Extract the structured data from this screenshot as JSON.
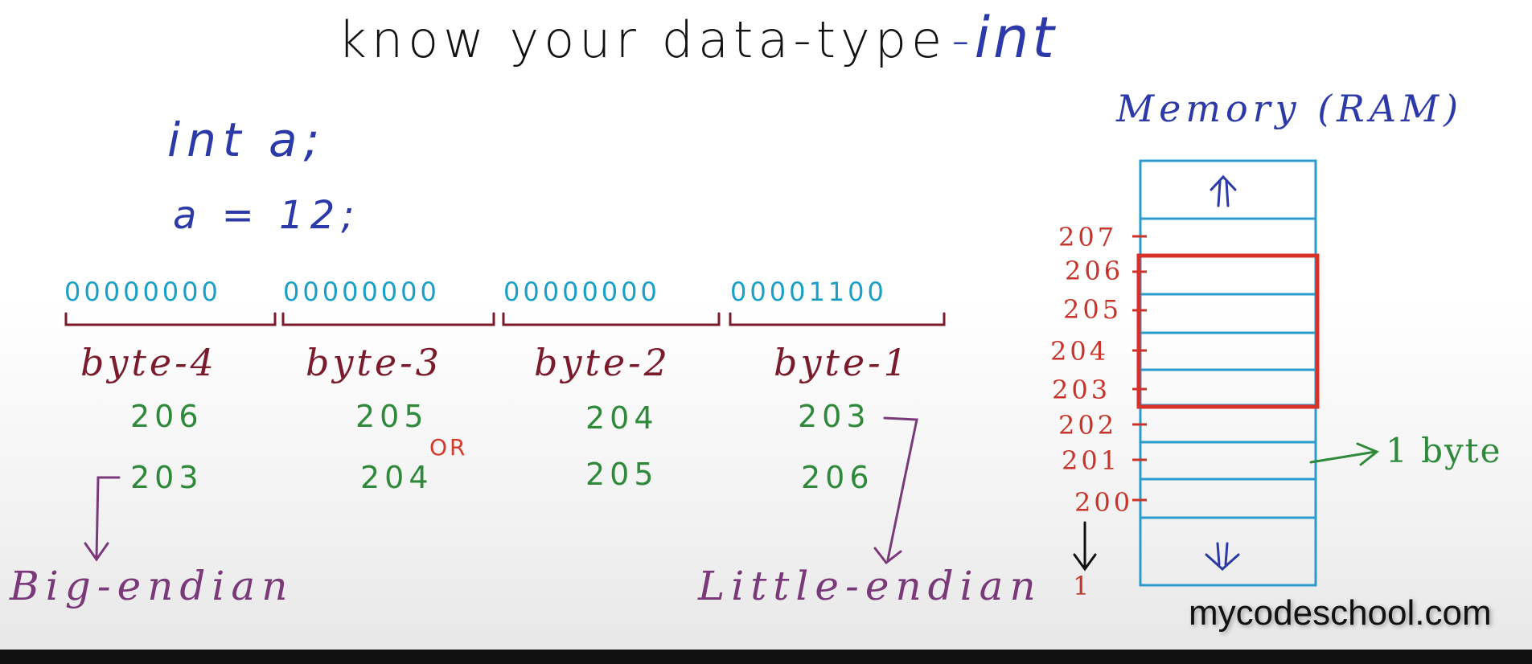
{
  "title": {
    "text": "know your data-type",
    "dash": "-",
    "keyword": "int"
  },
  "code": {
    "line1": "int a;",
    "line2": "a = 12;"
  },
  "bits": [
    {
      "value": "00000000"
    },
    {
      "value": "00000000"
    },
    {
      "value": "00000000"
    },
    {
      "value": "00001100"
    }
  ],
  "bytes": [
    {
      "label": "byte-4",
      "big_endian_addr": "206",
      "little_endian_addr": "203"
    },
    {
      "label": "byte-3",
      "big_endian_addr": "205",
      "little_endian_addr": "204"
    },
    {
      "label": "byte-2",
      "big_endian_addr": "204",
      "little_endian_addr": "205"
    },
    {
      "label": "byte-1",
      "big_endian_addr": "203",
      "little_endian_addr": "206"
    }
  ],
  "or_label": "OR",
  "big_endian_label": "Big-endian",
  "little_endian_label": "Little-endian",
  "memory": {
    "title": "Memory (RAM)",
    "addresses": [
      "207",
      "206",
      "205",
      "204",
      "203",
      "202",
      "201",
      "200"
    ],
    "bottom_addr": "1",
    "cell_label": "1 byte"
  },
  "watermark": "mycodeschool.com",
  "colors": {
    "title_accent": "#2b3aa8",
    "bits": "#1aa0c8",
    "byte_label": "#7a1a2b",
    "address_green": "#2e8a3a",
    "memory_address": "#c8342a",
    "memory_grid": "#2a9ccc",
    "highlight": "#d9302a",
    "endian_label": "#7a3a7a"
  }
}
